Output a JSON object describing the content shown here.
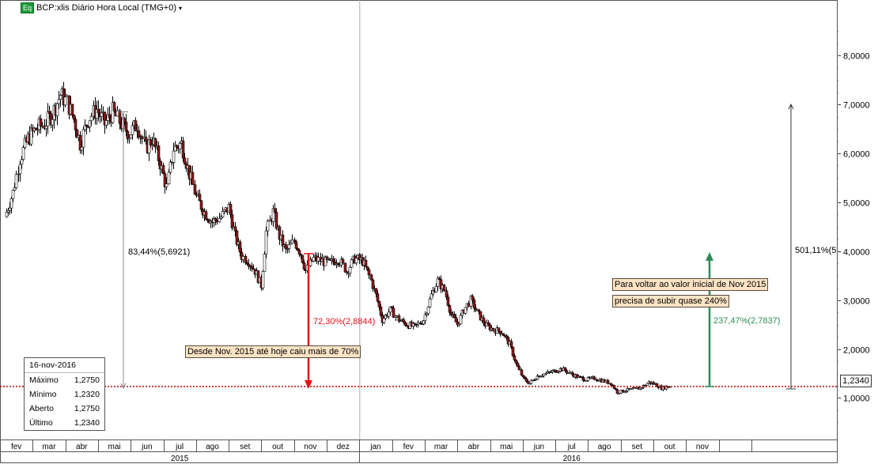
{
  "header": {
    "badge": "Eq",
    "title": "BCP:xlis Diário Hora Local (TMG+0)",
    "caret": "▾"
  },
  "colors": {
    "up": "#ffffff",
    "down": "#8b1a1a",
    "red_arrow": "#e8121a",
    "green_arrow": "#2e8b57",
    "current_line": "#c00000",
    "note_bg": "#fbe3c4"
  },
  "legend": {
    "date": "16-nov-2016",
    "rows": [
      {
        "label": "Máximo",
        "value": "1,2750"
      },
      {
        "label": "Mínimo",
        "value": "1,2320"
      },
      {
        "label": "Aberto",
        "value": "1,2750"
      },
      {
        "label": "Último",
        "value": "1,2340"
      }
    ]
  },
  "annotations": {
    "drop_total": "83,44%(5,6921)",
    "drop_since_nov": "72,30%(2,8844)",
    "rise_needed": "237,47%(2,7837)",
    "rise_total": "501,11%(5",
    "note_drop": "Desde Nov. 2015 até hoje caiu mais  de 70%",
    "note_rise_1": "Para voltar ao valor inicial de Nov 2015",
    "note_rise_2": "precisa de subir quase 240%",
    "last_price": "1,2340"
  },
  "chart_data": {
    "type": "candlestick",
    "yaxis": {
      "min": 0,
      "max": 8.5,
      "ticks": [
        {
          "value": 1,
          "label": "1,0000"
        },
        {
          "value": 2,
          "label": "2,0000"
        },
        {
          "value": 3,
          "label": "3,0000"
        },
        {
          "value": 4,
          "label": "4,0000"
        },
        {
          "value": 5,
          "label": "5,0000"
        },
        {
          "value": 6,
          "label": "6,0000"
        },
        {
          "value": 7,
          "label": "7,0000"
        },
        {
          "value": 8,
          "label": "8,0000"
        }
      ]
    },
    "xaxis": {
      "months": [
        "fev",
        "mar",
        "abr",
        "mai",
        "jun",
        "jul",
        "ago",
        "set",
        "out",
        "nov",
        "dez",
        "jan",
        "fev",
        "mar",
        "abr",
        "mai",
        "jun",
        "jul",
        "ago",
        "set",
        "out",
        "nov",
        "",
        ""
      ],
      "years": [
        {
          "label": "2015",
          "start": 0,
          "end": 11
        },
        {
          "label": "2016",
          "start": 11,
          "end": 24
        }
      ]
    },
    "current_value": 1.234,
    "series": [
      {
        "m": 0.0,
        "c": 4.7
      },
      {
        "m": 0.25,
        "c": 5.2
      },
      {
        "m": 0.45,
        "c": 5.9
      },
      {
        "m": 0.7,
        "c": 6.3
      },
      {
        "m": 0.95,
        "c": 6.5
      },
      {
        "m": 1.2,
        "c": 6.6
      },
      {
        "m": 1.45,
        "c": 6.8
      },
      {
        "m": 1.7,
        "c": 7.2
      },
      {
        "m": 1.9,
        "c": 7.05
      },
      {
        "m": 2.1,
        "c": 6.7
      },
      {
        "m": 2.3,
        "c": 6.2
      },
      {
        "m": 2.55,
        "c": 6.7
      },
      {
        "m": 2.8,
        "c": 6.9
      },
      {
        "m": 3.05,
        "c": 6.6
      },
      {
        "m": 3.3,
        "c": 6.85
      },
      {
        "m": 3.55,
        "c": 6.6
      },
      {
        "m": 3.8,
        "c": 6.4
      },
      {
        "m": 4.05,
        "c": 6.6
      },
      {
        "m": 4.3,
        "c": 6.1
      },
      {
        "m": 4.5,
        "c": 6.3
      },
      {
        "m": 4.75,
        "c": 5.8
      },
      {
        "m": 4.95,
        "c": 5.3
      },
      {
        "m": 5.15,
        "c": 6.1
      },
      {
        "m": 5.4,
        "c": 6.2
      },
      {
        "m": 5.6,
        "c": 5.7
      },
      {
        "m": 5.85,
        "c": 5.1
      },
      {
        "m": 6.1,
        "c": 4.8
      },
      {
        "m": 6.35,
        "c": 4.6
      },
      {
        "m": 6.6,
        "c": 4.7
      },
      {
        "m": 6.85,
        "c": 4.9
      },
      {
        "m": 7.05,
        "c": 4.3
      },
      {
        "m": 7.25,
        "c": 3.9
      },
      {
        "m": 7.45,
        "c": 3.8
      },
      {
        "m": 7.65,
        "c": 3.6
      },
      {
        "m": 7.85,
        "c": 3.3
      },
      {
        "m": 8.0,
        "c": 4.4
      },
      {
        "m": 8.2,
        "c": 4.8
      },
      {
        "m": 8.4,
        "c": 4.3
      },
      {
        "m": 8.6,
        "c": 4.0
      },
      {
        "m": 8.85,
        "c": 4.2
      },
      {
        "m": 9.05,
        "c": 3.95
      },
      {
        "m": 9.2,
        "c": 3.6
      },
      {
        "m": 9.45,
        "c": 3.85
      },
      {
        "m": 9.7,
        "c": 3.8
      },
      {
        "m": 9.95,
        "c": 3.75
      },
      {
        "m": 10.2,
        "c": 3.85
      },
      {
        "m": 10.45,
        "c": 3.6
      },
      {
        "m": 10.7,
        "c": 3.85
      },
      {
        "m": 10.95,
        "c": 3.8
      },
      {
        "m": 11.15,
        "c": 3.5
      },
      {
        "m": 11.35,
        "c": 3.1
      },
      {
        "m": 11.55,
        "c": 2.6
      },
      {
        "m": 11.8,
        "c": 2.8
      },
      {
        "m": 12.05,
        "c": 2.6
      },
      {
        "m": 12.3,
        "c": 2.5
      },
      {
        "m": 12.55,
        "c": 2.45
      },
      {
        "m": 12.8,
        "c": 2.6
      },
      {
        "m": 13.05,
        "c": 3.1
      },
      {
        "m": 13.25,
        "c": 3.4
      },
      {
        "m": 13.45,
        "c": 3.2
      },
      {
        "m": 13.65,
        "c": 2.7
      },
      {
        "m": 13.85,
        "c": 2.5
      },
      {
        "m": 14.05,
        "c": 2.8
      },
      {
        "m": 14.25,
        "c": 3.0
      },
      {
        "m": 14.45,
        "c": 2.75
      },
      {
        "m": 14.7,
        "c": 2.5
      },
      {
        "m": 14.95,
        "c": 2.4
      },
      {
        "m": 15.2,
        "c": 2.35
      },
      {
        "m": 15.45,
        "c": 2.1
      },
      {
        "m": 15.65,
        "c": 1.7
      },
      {
        "m": 15.85,
        "c": 1.4
      },
      {
        "m": 16.05,
        "c": 1.3
      },
      {
        "m": 16.3,
        "c": 1.45
      },
      {
        "m": 16.55,
        "c": 1.5
      },
      {
        "m": 16.8,
        "c": 1.55
      },
      {
        "m": 17.05,
        "c": 1.6
      },
      {
        "m": 17.3,
        "c": 1.5
      },
      {
        "m": 17.55,
        "c": 1.42
      },
      {
        "m": 17.8,
        "c": 1.38
      },
      {
        "m": 18.05,
        "c": 1.4
      },
      {
        "m": 18.3,
        "c": 1.35
      },
      {
        "m": 18.55,
        "c": 1.3
      },
      {
        "m": 18.75,
        "c": 1.12
      },
      {
        "m": 18.95,
        "c": 1.15
      },
      {
        "m": 19.2,
        "c": 1.18
      },
      {
        "m": 19.45,
        "c": 1.2
      },
      {
        "m": 19.7,
        "c": 1.32
      },
      {
        "m": 19.9,
        "c": 1.28
      },
      {
        "m": 20.1,
        "c": 1.2
      },
      {
        "m": 20.25,
        "c": 1.23
      },
      {
        "m": 20.35,
        "c": 1.234
      }
    ]
  }
}
